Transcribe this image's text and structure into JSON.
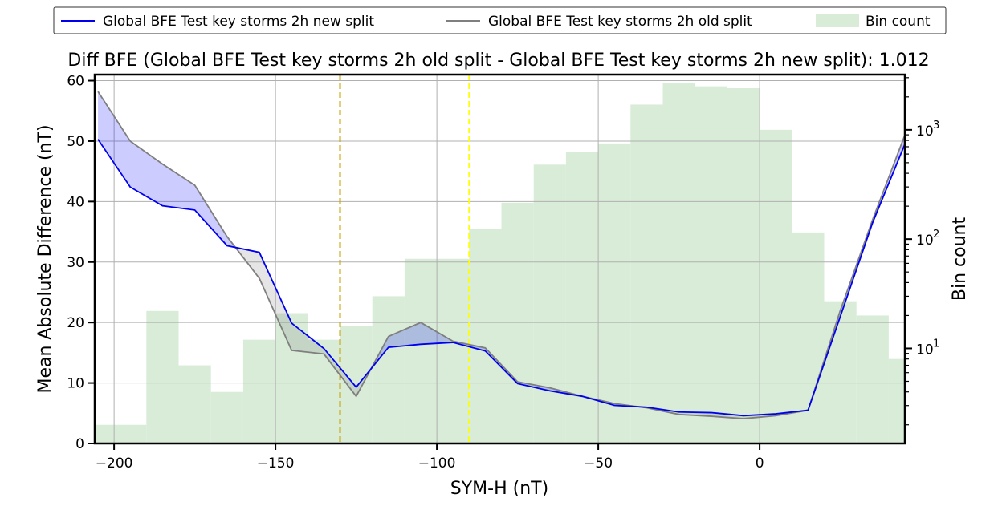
{
  "chart_data": {
    "type": "line",
    "title": "Diff BFE (Global BFE Test key storms 2h old split - Global BFE Test key storms 2h new split): 1.012",
    "xlabel": "SYM-H (nT)",
    "ylabel": "Mean Absolute Difference (nT)",
    "y2label": "Bin count",
    "xlim": [
      -206,
      45
    ],
    "ylim": [
      0,
      61
    ],
    "y2lim": [
      1.35,
      3200
    ],
    "y2scale": "log",
    "grid": true,
    "legend_position": "top-center",
    "x_ticks": [
      -200,
      -150,
      -100,
      -50,
      0
    ],
    "x_tick_labels": [
      "−200",
      "−150",
      "−100",
      "−50",
      "0"
    ],
    "y_ticks": [
      0,
      10,
      20,
      30,
      40,
      50,
      60
    ],
    "y_tick_labels": [
      "0",
      "10",
      "20",
      "30",
      "40",
      "50",
      "60"
    ],
    "y2_ticks": [
      10,
      100,
      1000
    ],
    "y2_tick_labels": [
      "10",
      "10",
      "10"
    ],
    "y2_tick_exponents": [
      "1",
      "2",
      "3"
    ],
    "x": [
      -205,
      -195,
      -185,
      -175,
      -165,
      -155,
      -145,
      -135,
      -125,
      -115,
      -105,
      -95,
      -85,
      -75,
      -65,
      -55,
      -45,
      -35,
      -25,
      -15,
      -5,
      5,
      15,
      25,
      35,
      45
    ],
    "series": [
      {
        "name": "Global BFE Test key storms 2h new split",
        "color": "#0000ee",
        "values": [
          50.3,
          42.4,
          39.3,
          38.6,
          32.7,
          31.6,
          19.9,
          15.7,
          9.3,
          15.9,
          16.4,
          16.7,
          15.3,
          9.9,
          8.7,
          7.8,
          6.3,
          6.0,
          5.2,
          5.1,
          4.6,
          4.9,
          5.5,
          21.0,
          36.5,
          49.5
        ]
      },
      {
        "name": "Global BFE Test key storms 2h old split",
        "color": "#7f7f7f",
        "values": [
          58.2,
          50.0,
          46.2,
          42.7,
          34.2,
          27.3,
          15.4,
          14.8,
          7.8,
          17.7,
          20.0,
          16.9,
          15.8,
          10.2,
          9.2,
          7.8,
          6.6,
          5.9,
          4.8,
          4.5,
          4.1,
          4.6,
          5.5,
          22.0,
          37.0,
          51.0
        ]
      }
    ],
    "bins": {
      "name": "Bin count",
      "color": "#d8ecd8",
      "edges": [
        -210,
        -190,
        -180,
        -170,
        -160,
        -150,
        -140,
        -130,
        -120,
        -110,
        -100,
        -90,
        -80,
        -70,
        -60,
        -50,
        -40,
        -30,
        -20,
        -10,
        0,
        10,
        20,
        30,
        40,
        50
      ],
      "counts": [
        2,
        22,
        7,
        4,
        12,
        21,
        12,
        16,
        30,
        66,
        66,
        125,
        215,
        480,
        630,
        750,
        1700,
        2700,
        2500,
        2400,
        1000,
        115,
        27,
        20,
        8
      ]
    },
    "vlines": [
      {
        "x": -130,
        "color": "#c8a000"
      },
      {
        "x": -90,
        "color": "#ffff00"
      }
    ]
  }
}
